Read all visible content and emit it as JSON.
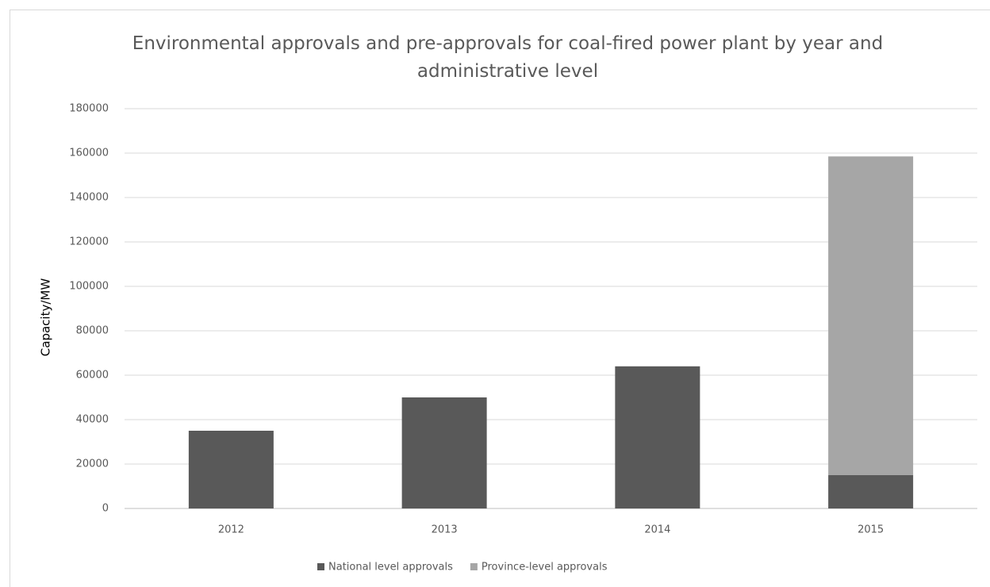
{
  "chart_data": {
    "type": "stacked_bar",
    "title": "Environmental approvals and pre-approvals for coal-fired power plant by year and administrative level",
    "y_label": "Capacity/MW",
    "categories": [
      "2012",
      "2013",
      "2014",
      "2015"
    ],
    "series": [
      {
        "name": "National level approvals",
        "color": "#595959",
        "values": [
          35000,
          50000,
          64000,
          15000
        ]
      },
      {
        "name": "Province-level approvals",
        "color": "#a6a6a6",
        "values": [
          0,
          0,
          0,
          143500
        ]
      }
    ],
    "ylim": [
      0,
      180000
    ],
    "yticks": [
      0,
      20000,
      40000,
      60000,
      80000,
      100000,
      120000,
      140000,
      160000,
      180000
    ],
    "grid": true,
    "legend": "bottom"
  }
}
